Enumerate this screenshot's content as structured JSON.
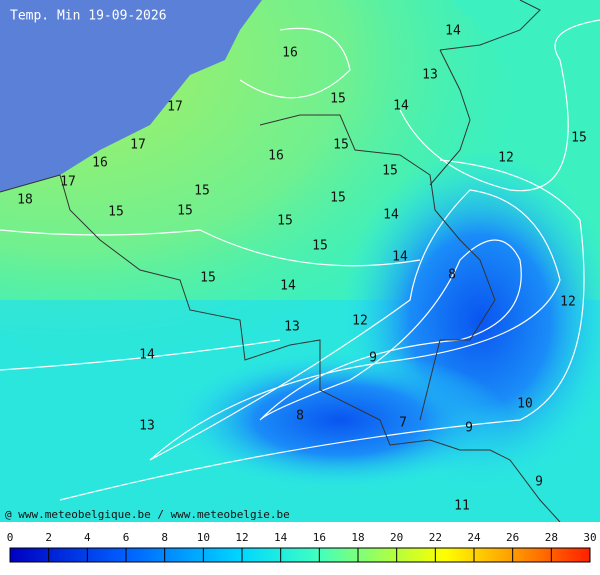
{
  "title": "Temp. Min 19-09-2026",
  "credit": "@ www.meteobelgique.be / www.meteobelgie.be",
  "contour_labels": [
    14,
    16,
    13,
    15,
    14,
    17,
    15,
    17,
    15,
    16,
    12,
    16,
    15,
    17,
    18,
    15,
    15,
    15,
    15,
    14,
    15,
    15,
    14,
    8,
    15,
    14,
    12,
    12,
    13,
    14,
    9,
    10,
    8,
    7,
    13,
    9,
    9,
    11
  ],
  "colorbar": {
    "ticks": [
      0,
      2,
      4,
      6,
      8,
      10,
      12,
      14,
      16,
      18,
      20,
      22,
      24,
      26,
      28,
      30
    ]
  }
}
